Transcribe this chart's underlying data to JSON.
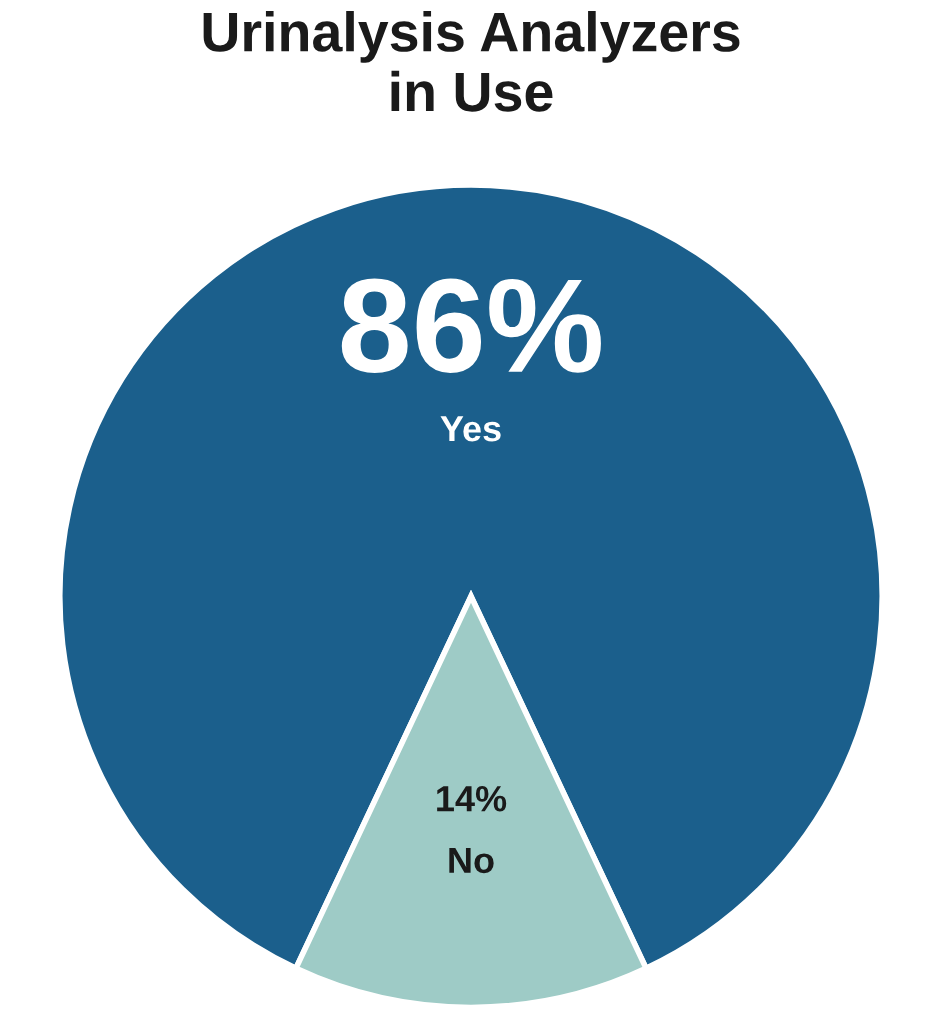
{
  "chart_data": {
    "type": "pie",
    "title": "Urinalysis Analyzers\nin Use",
    "categories": [
      "Yes",
      "No"
    ],
    "values": [
      86,
      14
    ],
    "colors": [
      "#1b5f8c",
      "#9ecbc6"
    ],
    "value_labels": [
      "86%",
      "14%"
    ]
  }
}
